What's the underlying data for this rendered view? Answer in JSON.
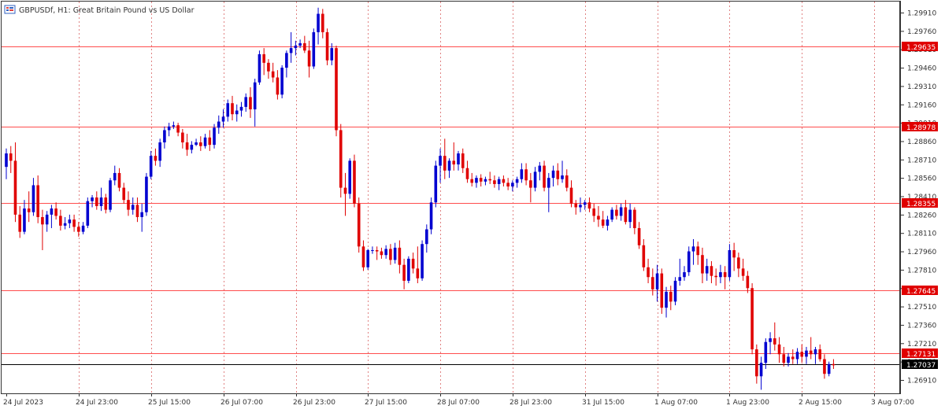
{
  "header": {
    "symbol": "GBPUSDf",
    "timeframe": "H1",
    "description": "Great Britain Pound vs US Dollar",
    "title_text": "GBPUSDf, H1:  Great Britain Pound vs US Dollar"
  },
  "colors": {
    "bull": "#0000d0",
    "bear": "#e00000",
    "level_line": "#ff4d4d",
    "level_tag_bg": "#e00000",
    "current_line": "#000000",
    "current_tag_bg": "#000000",
    "grid": "#d24a4a",
    "axis": "#333333"
  },
  "chart_data": {
    "type": "candlestick",
    "symbol": "GBPUSDf",
    "timeframe": "H1",
    "ylim": [
      1.2682,
      1.2999
    ],
    "y_ticks": [
      "1.29910",
      "1.29760",
      "1.29610",
      "1.29460",
      "1.29310",
      "1.29160",
      "1.29010",
      "1.28860",
      "1.28710",
      "1.28560",
      "1.28410",
      "1.28260",
      "1.28110",
      "1.27960",
      "1.27810",
      "1.27660",
      "1.27510",
      "1.27360",
      "1.27210",
      "1.27060",
      "1.26910"
    ],
    "x_ticks": [
      "24 Jul 2023",
      "24 Jul 23:00",
      "25 Jul 15:00",
      "26 Jul 07:00",
      "26 Jul 23:00",
      "27 Jul 15:00",
      "28 Jul 07:00",
      "28 Jul 23:00",
      "31 Jul 15:00",
      "1 Aug 07:00",
      "1 Aug 23:00",
      "2 Aug 15:00",
      "3 Aug 07:00"
    ],
    "horizontal_levels": [
      "1.29635",
      "1.28978",
      "1.28355",
      "1.27645",
      "1.27131"
    ],
    "current_price": "1.27037",
    "grid": true,
    "candles": [
      [
        1.2865,
        1.288,
        1.2855,
        1.2876
      ],
      [
        1.2876,
        1.2882,
        1.286,
        1.287
      ],
      [
        1.287,
        1.2885,
        1.282,
        1.2826
      ],
      [
        1.2826,
        1.2833,
        1.2807,
        1.2812
      ],
      [
        1.2812,
        1.2838,
        1.281,
        1.2831
      ],
      [
        1.2831,
        1.2845,
        1.282,
        1.2828
      ],
      [
        1.2828,
        1.2856,
        1.2825,
        1.285
      ],
      [
        1.285,
        1.2858,
        1.2819,
        1.2824
      ],
      [
        1.2824,
        1.283,
        1.2797,
        1.2818
      ],
      [
        1.2818,
        1.2829,
        1.2812,
        1.2826
      ],
      [
        1.2826,
        1.2834,
        1.2815,
        1.2831
      ],
      [
        1.2831,
        1.2836,
        1.2822,
        1.2825
      ],
      [
        1.2825,
        1.283,
        1.2813,
        1.2817
      ],
      [
        1.2817,
        1.2824,
        1.2814,
        1.2819
      ],
      [
        1.2819,
        1.2826,
        1.2815,
        1.2822
      ],
      [
        1.2822,
        1.2826,
        1.2812,
        1.2816
      ],
      [
        1.2816,
        1.282,
        1.2808,
        1.2812
      ],
      [
        1.2812,
        1.282,
        1.281,
        1.2817
      ],
      [
        1.2817,
        1.284,
        1.2815,
        1.2837
      ],
      [
        1.2837,
        1.2842,
        1.2832,
        1.284
      ],
      [
        1.284,
        1.2845,
        1.283,
        1.2833
      ],
      [
        1.2833,
        1.2848,
        1.2829,
        1.284
      ],
      [
        1.284,
        1.2843,
        1.2827,
        1.283
      ],
      [
        1.283,
        1.2856,
        1.2828,
        1.2854
      ],
      [
        1.2854,
        1.2866,
        1.285,
        1.286
      ],
      [
        1.286,
        1.2864,
        1.2845,
        1.2848
      ],
      [
        1.2848,
        1.2852,
        1.2835,
        1.2838
      ],
      [
        1.2838,
        1.2845,
        1.2825,
        1.283
      ],
      [
        1.283,
        1.284,
        1.2826,
        1.2834
      ],
      [
        1.2834,
        1.284,
        1.282,
        1.2824
      ],
      [
        1.2824,
        1.2835,
        1.2812,
        1.2828
      ],
      [
        1.2828,
        1.286,
        1.2825,
        1.2857
      ],
      [
        1.2857,
        1.2878,
        1.2855,
        1.2874
      ],
      [
        1.2874,
        1.288,
        1.2866,
        1.287
      ],
      [
        1.287,
        1.2888,
        1.2865,
        1.2885
      ],
      [
        1.2885,
        1.2898,
        1.288,
        1.2895
      ],
      [
        1.2895,
        1.2901,
        1.289,
        1.2898
      ],
      [
        1.2898,
        1.2902,
        1.2896,
        1.2899
      ],
      [
        1.2899,
        1.2901,
        1.289,
        1.2893
      ],
      [
        1.2893,
        1.2896,
        1.288,
        1.2885
      ],
      [
        1.2885,
        1.2892,
        1.2874,
        1.2879
      ],
      [
        1.2879,
        1.2886,
        1.2876,
        1.2883
      ],
      [
        1.2883,
        1.2888,
        1.2882,
        1.2885
      ],
      [
        1.2885,
        1.289,
        1.2878,
        1.2882
      ],
      [
        1.2882,
        1.2892,
        1.288,
        1.2889
      ],
      [
        1.2889,
        1.2895,
        1.2878,
        1.2883
      ],
      [
        1.2883,
        1.29,
        1.288,
        1.2897
      ],
      [
        1.2897,
        1.2907,
        1.2892,
        1.2902
      ],
      [
        1.2902,
        1.2912,
        1.2897,
        1.2906
      ],
      [
        1.2906,
        1.292,
        1.2902,
        1.2917
      ],
      [
        1.2917,
        1.2923,
        1.2903,
        1.2908
      ],
      [
        1.2908,
        1.2916,
        1.2902,
        1.2911
      ],
      [
        1.2911,
        1.2918,
        1.2906,
        1.2914
      ],
      [
        1.2914,
        1.2925,
        1.291,
        1.2922
      ],
      [
        1.2922,
        1.293,
        1.2905,
        1.2912
      ],
      [
        1.2912,
        1.2937,
        1.2898,
        1.2934
      ],
      [
        1.2934,
        1.296,
        1.2932,
        1.2957
      ],
      [
        1.2957,
        1.2962,
        1.294,
        1.295
      ],
      [
        1.295,
        1.2953,
        1.2937,
        1.2943
      ],
      [
        1.2943,
        1.295,
        1.2934,
        1.2938
      ],
      [
        1.2938,
        1.2944,
        1.292,
        1.2924
      ],
      [
        1.2924,
        1.2948,
        1.2921,
        1.2946
      ],
      [
        1.2946,
        1.296,
        1.2938,
        1.2958
      ],
      [
        1.2958,
        1.2975,
        1.295,
        1.2962
      ],
      [
        1.2962,
        1.2968,
        1.2956,
        1.2964
      ],
      [
        1.2964,
        1.2969,
        1.2962,
        1.2966
      ],
      [
        1.2966,
        1.2972,
        1.2958,
        1.296
      ],
      [
        1.296,
        1.2968,
        1.2938,
        1.2947
      ],
      [
        1.2947,
        1.2978,
        1.2945,
        1.2975
      ],
      [
        1.2975,
        1.2995,
        1.2965,
        1.299
      ],
      [
        1.299,
        1.2994,
        1.297,
        1.2975
      ],
      [
        1.2975,
        1.2978,
        1.2948,
        1.2952
      ],
      [
        1.2952,
        1.2966,
        1.2948,
        1.2962
      ],
      [
        1.2962,
        1.2964,
        1.289,
        1.2895
      ],
      [
        1.2895,
        1.29,
        1.284,
        1.2848
      ],
      [
        1.2848,
        1.286,
        1.2825,
        1.2843
      ],
      [
        1.2843,
        1.2872,
        1.2839,
        1.287
      ],
      [
        1.287,
        1.2875,
        1.2832,
        1.2835
      ],
      [
        1.2835,
        1.284,
        1.2795,
        1.28
      ],
      [
        1.28,
        1.2805,
        1.278,
        1.2783
      ],
      [
        1.2783,
        1.2798,
        1.2781,
        1.2797
      ],
      [
        1.2797,
        1.28,
        1.2794,
        1.2797
      ],
      [
        1.2797,
        1.28,
        1.2789,
        1.2796
      ],
      [
        1.2796,
        1.2799,
        1.279,
        1.2793
      ],
      [
        1.2793,
        1.2801,
        1.279,
        1.2798
      ],
      [
        1.2798,
        1.2802,
        1.2785,
        1.2789
      ],
      [
        1.2789,
        1.2803,
        1.2786,
        1.2799
      ],
      [
        1.2799,
        1.2805,
        1.2778,
        1.2785
      ],
      [
        1.2785,
        1.279,
        1.2765,
        1.2772
      ],
      [
        1.2772,
        1.2792,
        1.277,
        1.279
      ],
      [
        1.279,
        1.2795,
        1.2778,
        1.2782
      ],
      [
        1.2782,
        1.28,
        1.277,
        1.2774
      ],
      [
        1.2774,
        1.2805,
        1.2772,
        1.2802
      ],
      [
        1.2802,
        1.2818,
        1.2795,
        1.2814
      ],
      [
        1.2814,
        1.284,
        1.281,
        1.2836
      ],
      [
        1.2836,
        1.287,
        1.2832,
        1.2866
      ],
      [
        1.2866,
        1.288,
        1.2852,
        1.2874
      ],
      [
        1.2874,
        1.2888,
        1.2855,
        1.2862
      ],
      [
        1.2862,
        1.2872,
        1.2856,
        1.287
      ],
      [
        1.287,
        1.2885,
        1.2862,
        1.2867
      ],
      [
        1.2867,
        1.2878,
        1.2862,
        1.2876
      ],
      [
        1.2876,
        1.288,
        1.286,
        1.2864
      ],
      [
        1.2864,
        1.287,
        1.2852,
        1.2855
      ],
      [
        1.2855,
        1.286,
        1.2849,
        1.2852
      ],
      [
        1.2852,
        1.2858,
        1.2848,
        1.2856
      ],
      [
        1.2856,
        1.2859,
        1.2849,
        1.2853
      ],
      [
        1.2853,
        1.2857,
        1.285,
        1.2855
      ],
      [
        1.2855,
        1.2861,
        1.2851,
        1.2854
      ],
      [
        1.2854,
        1.2858,
        1.2848,
        1.2851
      ],
      [
        1.2851,
        1.2857,
        1.2846,
        1.2855
      ],
      [
        1.2855,
        1.2858,
        1.2849,
        1.2852
      ],
      [
        1.2852,
        1.2856,
        1.2846,
        1.2849
      ],
      [
        1.2849,
        1.2854,
        1.2845,
        1.2852
      ],
      [
        1.2852,
        1.2857,
        1.2848,
        1.2855
      ],
      [
        1.2855,
        1.2868,
        1.2852,
        1.2863
      ],
      [
        1.2863,
        1.2868,
        1.285,
        1.2854
      ],
      [
        1.2854,
        1.286,
        1.2836,
        1.2848
      ],
      [
        1.2848,
        1.2865,
        1.2845,
        1.2861
      ],
      [
        1.2861,
        1.2869,
        1.2854,
        1.2866
      ],
      [
        1.2866,
        1.287,
        1.2845,
        1.2848
      ],
      [
        1.2848,
        1.286,
        1.2828,
        1.2856
      ],
      [
        1.2856,
        1.2866,
        1.2849,
        1.2862
      ],
      [
        1.2862,
        1.2868,
        1.285,
        1.2855
      ],
      [
        1.2855,
        1.287,
        1.2852,
        1.2858
      ],
      [
        1.2858,
        1.2863,
        1.2845,
        1.2848
      ],
      [
        1.2848,
        1.2854,
        1.2832,
        1.2835
      ],
      [
        1.2835,
        1.2838,
        1.2826,
        1.2832
      ],
      [
        1.2832,
        1.284,
        1.2828,
        1.2834
      ],
      [
        1.2834,
        1.2838,
        1.283,
        1.2836
      ],
      [
        1.2836,
        1.284,
        1.2828,
        1.2831
      ],
      [
        1.2831,
        1.2835,
        1.282,
        1.2825
      ],
      [
        1.2825,
        1.2833,
        1.2816,
        1.2822
      ],
      [
        1.2822,
        1.2829,
        1.2815,
        1.2817
      ],
      [
        1.2817,
        1.2825,
        1.2813,
        1.2822
      ],
      [
        1.2822,
        1.2832,
        1.282,
        1.283
      ],
      [
        1.283,
        1.2834,
        1.2822,
        1.2825
      ],
      [
        1.2825,
        1.2835,
        1.2821,
        1.2832
      ],
      [
        1.2832,
        1.2838,
        1.2818,
        1.282
      ],
      [
        1.282,
        1.2835,
        1.2815,
        1.283
      ],
      [
        1.283,
        1.2832,
        1.281,
        1.2815
      ],
      [
        1.2815,
        1.282,
        1.2798,
        1.2801
      ],
      [
        1.2801,
        1.2806,
        1.278,
        1.2783
      ],
      [
        1.2783,
        1.279,
        1.277,
        1.2775
      ],
      [
        1.2775,
        1.2782,
        1.276,
        1.2765
      ],
      [
        1.2765,
        1.2785,
        1.2755,
        1.2778
      ],
      [
        1.2778,
        1.2782,
        1.2745,
        1.275
      ],
      [
        1.275,
        1.2767,
        1.2742,
        1.2763
      ],
      [
        1.2763,
        1.2768,
        1.2748,
        1.2755
      ],
      [
        1.2755,
        1.2775,
        1.2752,
        1.2772
      ],
      [
        1.2772,
        1.279,
        1.2768,
        1.2775
      ],
      [
        1.2775,
        1.2784,
        1.2772,
        1.2779
      ],
      [
        1.2779,
        1.28,
        1.2776,
        1.2796
      ],
      [
        1.2796,
        1.2806,
        1.2785,
        1.28
      ],
      [
        1.28,
        1.2804,
        1.2785,
        1.2793
      ],
      [
        1.2793,
        1.2799,
        1.277,
        1.2778
      ],
      [
        1.2778,
        1.279,
        1.2772,
        1.2784
      ],
      [
        1.2784,
        1.2788,
        1.277,
        1.2776
      ],
      [
        1.2776,
        1.2782,
        1.2768,
        1.2775
      ],
      [
        1.2775,
        1.2785,
        1.277,
        1.2779
      ],
      [
        1.2779,
        1.2784,
        1.2765,
        1.2775
      ],
      [
        1.2775,
        1.2802,
        1.2772,
        1.2797
      ],
      [
        1.2797,
        1.2803,
        1.278,
        1.2791
      ],
      [
        1.2791,
        1.2795,
        1.2775,
        1.2782
      ],
      [
        1.2782,
        1.279,
        1.2772,
        1.2776
      ],
      [
        1.2776,
        1.278,
        1.2762,
        1.2766
      ],
      [
        1.2766,
        1.277,
        1.2712,
        1.2716
      ],
      [
        1.2716,
        1.272,
        1.2688,
        1.2694
      ],
      [
        1.2694,
        1.271,
        1.2683,
        1.2705
      ],
      [
        1.2705,
        1.2725,
        1.27,
        1.2722
      ],
      [
        1.2722,
        1.273,
        1.2712,
        1.2725
      ],
      [
        1.2725,
        1.2738,
        1.2715,
        1.272
      ],
      [
        1.272,
        1.2726,
        1.2705,
        1.2712
      ],
      [
        1.2712,
        1.2718,
        1.2702,
        1.2705
      ],
      [
        1.2705,
        1.2713,
        1.2702,
        1.271
      ],
      [
        1.271,
        1.2716,
        1.2704,
        1.2708
      ],
      [
        1.2708,
        1.2717,
        1.2704,
        1.2714
      ],
      [
        1.2714,
        1.272,
        1.2705,
        1.271
      ],
      [
        1.271,
        1.2718,
        1.2704,
        1.2715
      ],
      [
        1.2715,
        1.2726,
        1.2708,
        1.2712
      ],
      [
        1.2712,
        1.2718,
        1.2704,
        1.2716
      ],
      [
        1.2716,
        1.272,
        1.2706,
        1.2708
      ],
      [
        1.2708,
        1.2712,
        1.2692,
        1.2696
      ],
      [
        1.2696,
        1.2706,
        1.2694,
        1.2704
      ],
      [
        1.2704,
        1.2708,
        1.27,
        1.2703
      ]
    ]
  }
}
